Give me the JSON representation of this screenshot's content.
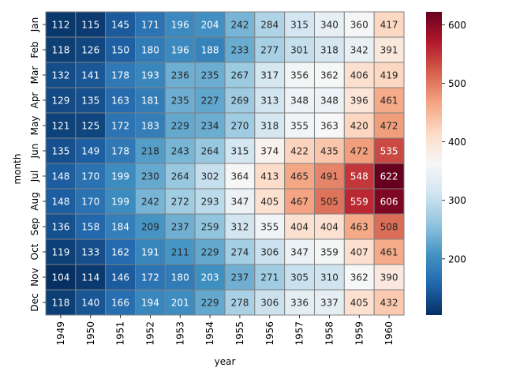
{
  "chart_data": {
    "type": "heatmap",
    "xlabel": "year",
    "ylabel": "month",
    "x": [
      "1949",
      "1950",
      "1951",
      "1952",
      "1953",
      "1954",
      "1955",
      "1956",
      "1957",
      "1958",
      "1959",
      "1960"
    ],
    "y": [
      "Jan",
      "Feb",
      "Mar",
      "Apr",
      "May",
      "Jun",
      "Jul",
      "Aug",
      "Sep",
      "Oct",
      "Nov",
      "Dec"
    ],
    "values": [
      [
        112,
        115,
        145,
        171,
        196,
        204,
        242,
        284,
        315,
        340,
        360,
        417
      ],
      [
        118,
        126,
        150,
        180,
        196,
        188,
        233,
        277,
        301,
        318,
        342,
        391
      ],
      [
        132,
        141,
        178,
        193,
        236,
        235,
        267,
        317,
        356,
        362,
        406,
        419
      ],
      [
        129,
        135,
        163,
        181,
        235,
        227,
        269,
        313,
        348,
        348,
        396,
        461
      ],
      [
        121,
        125,
        172,
        183,
        229,
        234,
        270,
        318,
        355,
        363,
        420,
        472
      ],
      [
        135,
        149,
        178,
        218,
        243,
        264,
        315,
        374,
        422,
        435,
        472,
        535
      ],
      [
        148,
        170,
        199,
        230,
        264,
        302,
        364,
        413,
        465,
        491,
        548,
        622
      ],
      [
        148,
        170,
        199,
        242,
        272,
        293,
        347,
        405,
        467,
        505,
        559,
        606
      ],
      [
        136,
        158,
        184,
        209,
        237,
        259,
        312,
        355,
        404,
        404,
        463,
        508
      ],
      [
        119,
        133,
        162,
        191,
        211,
        229,
        274,
        306,
        347,
        359,
        407,
        461
      ],
      [
        104,
        114,
        146,
        172,
        180,
        203,
        237,
        271,
        305,
        310,
        362,
        390
      ],
      [
        118,
        140,
        166,
        194,
        201,
        229,
        278,
        306,
        336,
        337,
        405,
        432
      ]
    ],
    "colormap": "RdBu_r",
    "vmin": 104,
    "vmax": 622,
    "colorbar_ticks": [
      200,
      300,
      400,
      500,
      600
    ],
    "annotations": true,
    "cell_border_color": "#808080"
  }
}
